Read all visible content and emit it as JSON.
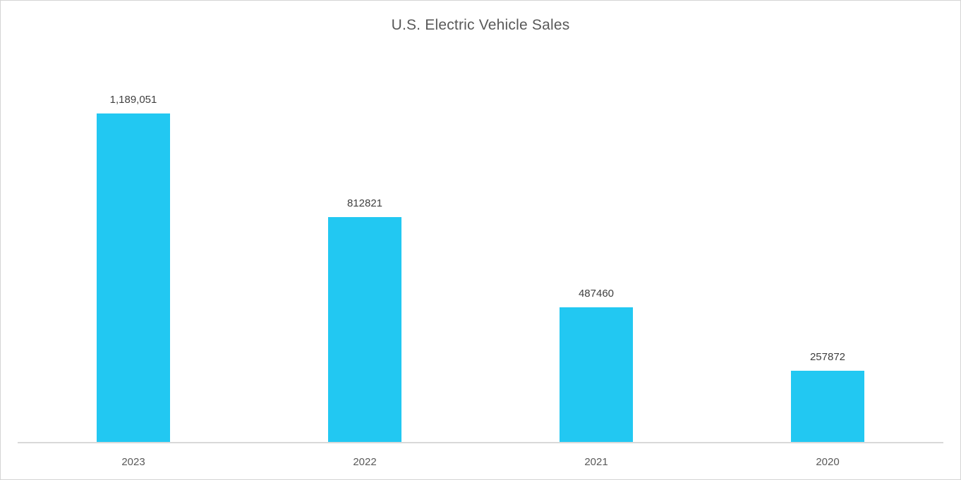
{
  "page": {
    "background_color": "#ffffff",
    "frame_border_color": "#d4d4d4"
  },
  "chart_data": {
    "type": "bar",
    "title": "U.S. Electric Vehicle Sales",
    "categories": [
      "2023",
      "2022",
      "2021",
      "2020"
    ],
    "values": [
      1189051,
      812821,
      487460,
      257872
    ],
    "value_labels": [
      "1,189,051",
      "812821",
      "487460",
      "257872"
    ],
    "series": [
      {
        "name": "U.S. Electric Vehicle Sales",
        "values": [
          1189051,
          812821,
          487460,
          257872
        ]
      }
    ],
    "xlabel": "",
    "ylabel": "",
    "y_axis_visible": false,
    "x_axis_line_visible": true,
    "grid": false,
    "legend_position": "none",
    "bar_color": "#22c8f2",
    "axis_line_color": "#d9d9d9",
    "title_color": "#595959",
    "value_label_color": "#3f3f3f",
    "category_label_color": "#595959"
  }
}
